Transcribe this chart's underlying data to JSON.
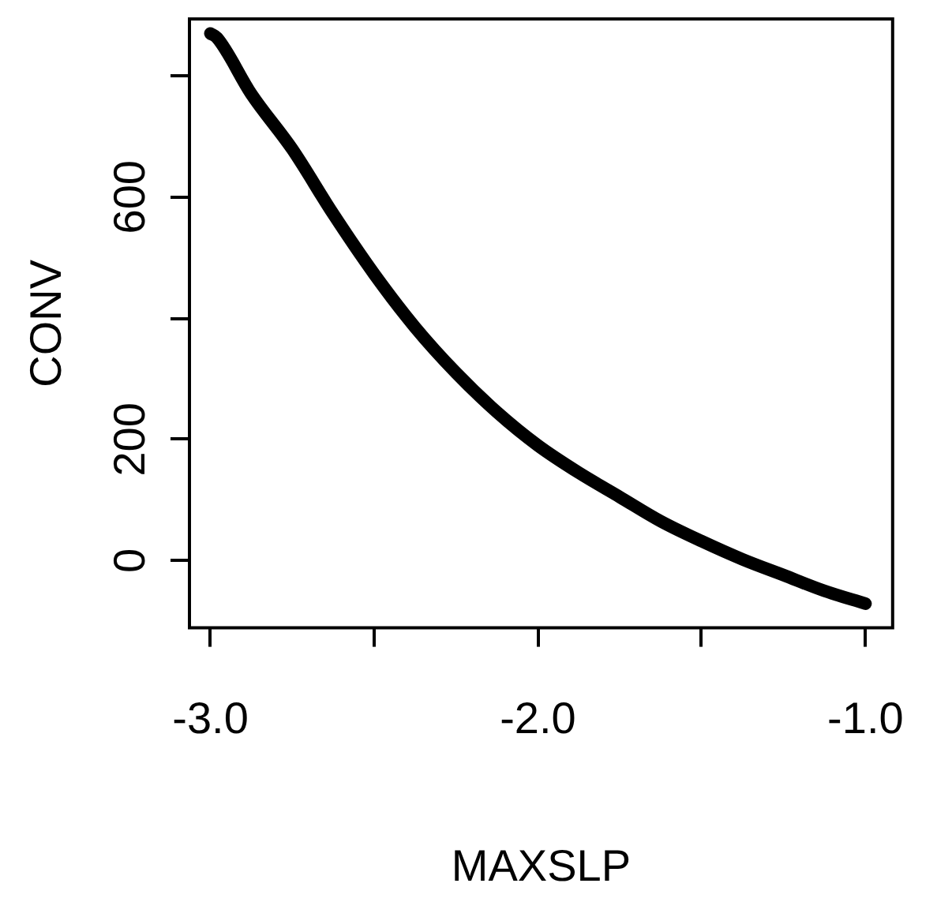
{
  "chart_data": {
    "type": "line",
    "xlabel": "MAXSLP",
    "ylabel": "CONV",
    "x": [
      -3.0,
      -2.98,
      -2.875,
      -2.75,
      -2.625,
      -2.5,
      -2.375,
      -2.25,
      -2.125,
      -2.0,
      -1.875,
      -1.75,
      -1.625,
      -1.5,
      -1.375,
      -1.25,
      -1.125,
      -1.0
    ],
    "series": [
      {
        "color": "#000000",
        "values": [
          870,
          863,
          770,
          679,
          572,
          473,
          385,
          310,
          245,
          190,
          145,
          105,
          65,
          32,
          2,
          -24,
          -50,
          -71
        ]
      }
    ],
    "xlim": [
      -3.064,
      -0.917
    ],
    "ylim": [
      -111,
      894
    ],
    "xticks": [
      {
        "value": -3.0,
        "label": "-3.0"
      },
      {
        "value": -2.5,
        "label": null
      },
      {
        "value": -2.0,
        "label": "-2.0"
      },
      {
        "value": -1.5,
        "label": null
      },
      {
        "value": -1.0,
        "label": "-1.0"
      }
    ],
    "yticks": [
      0,
      200,
      {
        "value": 400,
        "label": null
      },
      600,
      {
        "value": 800,
        "label": null
      }
    ],
    "marker": "none",
    "line_style": "solid"
  }
}
